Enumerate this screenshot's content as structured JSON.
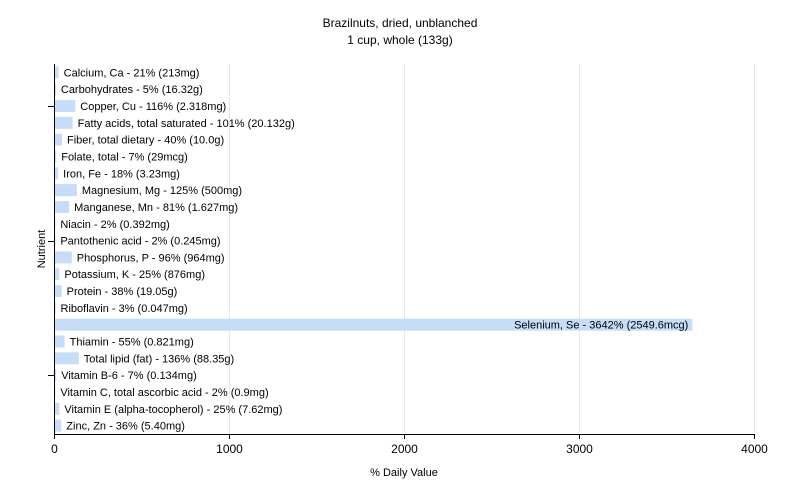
{
  "chart_data": {
    "type": "bar",
    "orientation": "horizontal",
    "title": "Brazilnuts, dried, unblanched",
    "subtitle": "1 cup, whole (133g)",
    "xlabel": "% Daily Value",
    "ylabel": "Nutrient",
    "xlim": [
      0,
      4000
    ],
    "xticks": [
      0,
      1000,
      2000,
      3000,
      4000
    ],
    "grid": true,
    "bar_color": "#c6dcf7",
    "categories": [
      "Calcium, Ca",
      "Carbohydrates",
      "Copper, Cu",
      "Fatty acids, total saturated",
      "Fiber, total dietary",
      "Folate, total",
      "Iron, Fe",
      "Magnesium, Mg",
      "Manganese, Mn",
      "Niacin",
      "Pantothenic acid",
      "Phosphorus, P",
      "Potassium, K",
      "Protein",
      "Riboflavin",
      "Selenium, Se",
      "Thiamin",
      "Total lipid (fat)",
      "Vitamin B-6",
      "Vitamin C, total ascorbic acid",
      "Vitamin E (alpha-tocopherol)",
      "Zinc, Zn"
    ],
    "values": [
      21,
      5,
      116,
      101,
      40,
      7,
      18,
      125,
      81,
      2,
      2,
      96,
      25,
      38,
      3,
      3642,
      55,
      136,
      7,
      2,
      25,
      36
    ],
    "labels": [
      "Calcium, Ca - 21% (213mg)",
      "Carbohydrates - 5% (16.32g)",
      "Copper, Cu - 116% (2.318mg)",
      "Fatty acids, total saturated - 101% (20.132g)",
      "Fiber, total dietary - 40% (10.0g)",
      "Folate, total - 7% (29mcg)",
      "Iron, Fe - 18% (3.23mg)",
      "Magnesium, Mg - 125% (500mg)",
      "Manganese, Mn - 81% (1.627mg)",
      "Niacin - 2% (0.392mg)",
      "Pantothenic acid - 2% (0.245mg)",
      "Phosphorus, P - 96% (964mg)",
      "Potassium, K - 25% (876mg)",
      "Protein - 38% (19.05g)",
      "Riboflavin - 3% (0.047mg)",
      "Selenium, Se - 3642% (2549.6mcg)",
      "Thiamin - 55% (0.821mg)",
      "Total lipid (fat) - 136% (88.35g)",
      "Vitamin B-6 - 7% (0.134mg)",
      "Vitamin C, total ascorbic acid - 2% (0.9mg)",
      "Vitamin E (alpha-tocopherol) - 25% (7.62mg)",
      "Zinc, Zn - 36% (5.40mg)"
    ]
  }
}
